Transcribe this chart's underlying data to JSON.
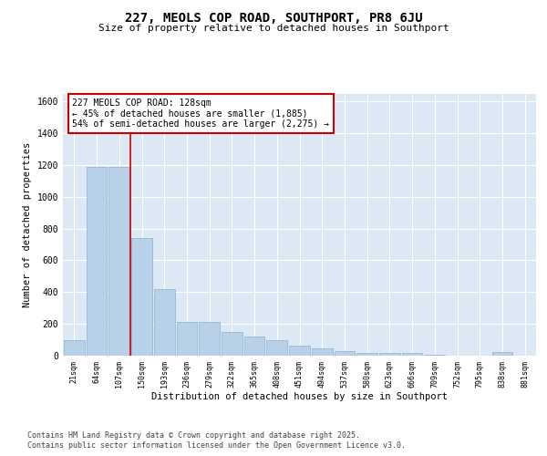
{
  "title": "227, MEOLS COP ROAD, SOUTHPORT, PR8 6JU",
  "subtitle": "Size of property relative to detached houses in Southport",
  "xlabel": "Distribution of detached houses by size in Southport",
  "ylabel": "Number of detached properties",
  "categories": [
    "21sqm",
    "64sqm",
    "107sqm",
    "150sqm",
    "193sqm",
    "236sqm",
    "279sqm",
    "322sqm",
    "365sqm",
    "408sqm",
    "451sqm",
    "494sqm",
    "537sqm",
    "580sqm",
    "623sqm",
    "666sqm",
    "709sqm",
    "752sqm",
    "795sqm",
    "838sqm",
    "881sqm"
  ],
  "values": [
    100,
    1190,
    1190,
    740,
    420,
    215,
    210,
    150,
    120,
    95,
    65,
    45,
    30,
    20,
    15,
    15,
    8,
    0,
    0,
    25,
    0
  ],
  "bar_color": "#b8d0e8",
  "bar_edge_color": "#8ab0d0",
  "vline_x": 2.5,
  "vline_color": "#cc0000",
  "annotation_text": "227 MEOLS COP ROAD: 128sqm\n← 45% of detached houses are smaller (1,885)\n54% of semi-detached houses are larger (2,275) →",
  "annotation_box_edge": "#cc0000",
  "ylim": [
    0,
    1650
  ],
  "yticks": [
    0,
    200,
    400,
    600,
    800,
    1000,
    1200,
    1400,
    1600
  ],
  "background_color": "#dce9f5",
  "fig_background": "#ffffff",
  "footer_line1": "Contains HM Land Registry data © Crown copyright and database right 2025.",
  "footer_line2": "Contains public sector information licensed under the Open Government Licence v3.0."
}
